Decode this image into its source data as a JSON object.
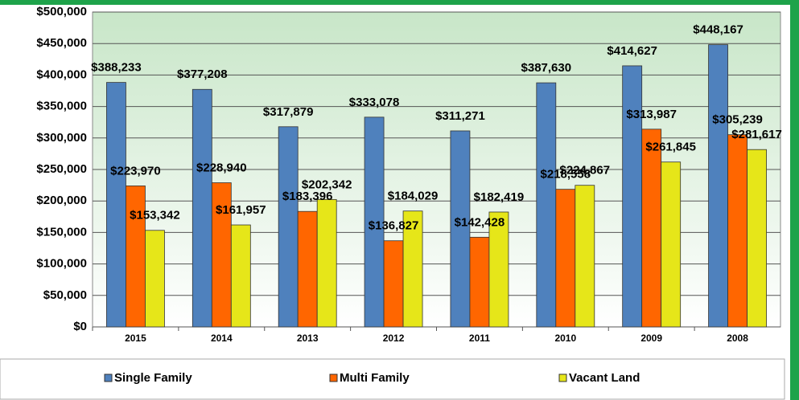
{
  "chart_data": {
    "type": "bar",
    "categories": [
      "2015",
      "2014",
      "2013",
      "2012",
      "2011",
      "2010",
      "2009",
      "2008"
    ],
    "series": [
      {
        "name": "Single Family",
        "color": "#4f81bd",
        "values": [
          388233,
          377208,
          317879,
          333078,
          311271,
          387630,
          414627,
          448167
        ],
        "value_labels": [
          "$388,233",
          "$377,208",
          "$317,879",
          "$333,078",
          "$311,271",
          "$387,630",
          "$414,627",
          "$448,167"
        ]
      },
      {
        "name": "Multi Family",
        "color": "#ff6600",
        "values": [
          223970,
          228940,
          183396,
          136827,
          142428,
          218558,
          313987,
          305239
        ],
        "value_labels": [
          "$223,970",
          "$228,940",
          "$183,396",
          "$136,827",
          "$142,428",
          "$218,558",
          "$313,987",
          "$305,239"
        ]
      },
      {
        "name": "Vacant Land",
        "color": "#e6e619",
        "values": [
          153342,
          161957,
          202342,
          184029,
          182419,
          224867,
          261845,
          281617
        ],
        "value_labels": [
          "$153,342",
          "$161,957",
          "$202,342",
          "$184,029",
          "$182,419",
          "$224,867",
          "$261,845",
          "$281,617"
        ]
      }
    ],
    "ylim": [
      0,
      500000
    ],
    "yticks": [
      {
        "value": 0,
        "label": "$0"
      },
      {
        "value": 50000,
        "label": "$50,000"
      },
      {
        "value": 100000,
        "label": "$100,000"
      },
      {
        "value": 150000,
        "label": "$150,000"
      },
      {
        "value": 200000,
        "label": "$200,000"
      },
      {
        "value": 250000,
        "label": "$250,000"
      },
      {
        "value": 300000,
        "label": "$300,000"
      },
      {
        "value": 350000,
        "label": "$350,000"
      },
      {
        "value": 400000,
        "label": "$400,000"
      },
      {
        "value": 450000,
        "label": "$450,000"
      },
      {
        "value": 500000,
        "label": "$500,000"
      }
    ],
    "grid": true,
    "legend": "bottom"
  }
}
